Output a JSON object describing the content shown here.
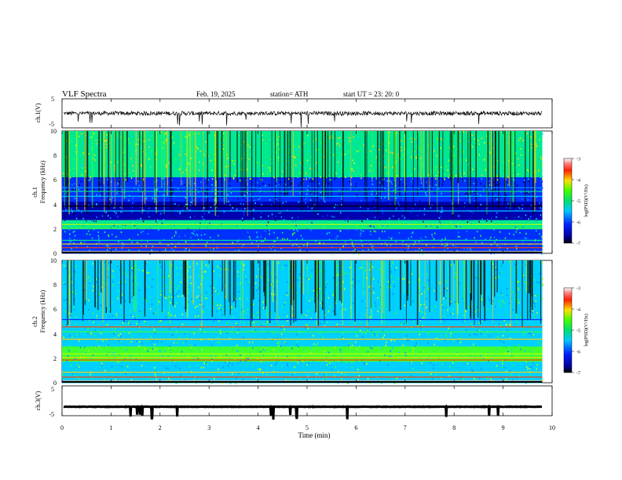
{
  "header": {
    "title": "VLF Spectra",
    "date": "Feb. 19, 2025",
    "station": "station= ATH",
    "start": "start UT = 23: 20: 0"
  },
  "chart_data": [
    {
      "type": "line",
      "name": "ch1-waveform",
      "ylabel": "ch.1(V)",
      "ylim": [
        -5,
        5
      ],
      "yticks": [
        "5",
        "-5"
      ],
      "xlim": [
        0,
        10
      ],
      "trace_level": 0
    },
    {
      "type": "heatmap",
      "name": "ch1-spectrogram",
      "ylabel_top": "ch.1",
      "ylabel": "Frequency (kHz)",
      "ylim": [
        0,
        10
      ],
      "yticks": [
        "0",
        "2",
        "4",
        "6",
        "8",
        "10"
      ],
      "xlim": [
        0,
        9.8
      ],
      "colorbar": {
        "label": "log(PSD)(V²/Hz)",
        "range": [
          -7,
          -3
        ],
        "ticks": [
          "-3",
          "-4",
          "-5",
          "-6",
          "-7"
        ]
      }
    },
    {
      "type": "heatmap",
      "name": "ch2-spectrogram",
      "ylabel_top": "ch.2",
      "ylabel": "Frequency (kHz)",
      "ylim": [
        0,
        10
      ],
      "yticks": [
        "0",
        "2",
        "4",
        "6",
        "8",
        "10"
      ],
      "xlim": [
        0,
        9.8
      ],
      "colorbar": {
        "label": "log(PSD)(V²/Hz)",
        "range": [
          -7,
          -3
        ],
        "ticks": [
          "-3",
          "-4",
          "-5",
          "-6",
          "-7"
        ]
      }
    },
    {
      "type": "line",
      "name": "ch3-waveform",
      "ylabel": "ch.3(V)",
      "ylim": [
        -5,
        5
      ],
      "yticks": [
        "5",
        "-5"
      ],
      "xlim": [
        0,
        10
      ],
      "trace_level": -2
    }
  ],
  "xaxis": {
    "label": "Time (min)",
    "ticks": [
      "0",
      "1",
      "2",
      "3",
      "4",
      "5",
      "6",
      "7",
      "8",
      "9",
      "10"
    ],
    "range": [
      0,
      10
    ]
  }
}
